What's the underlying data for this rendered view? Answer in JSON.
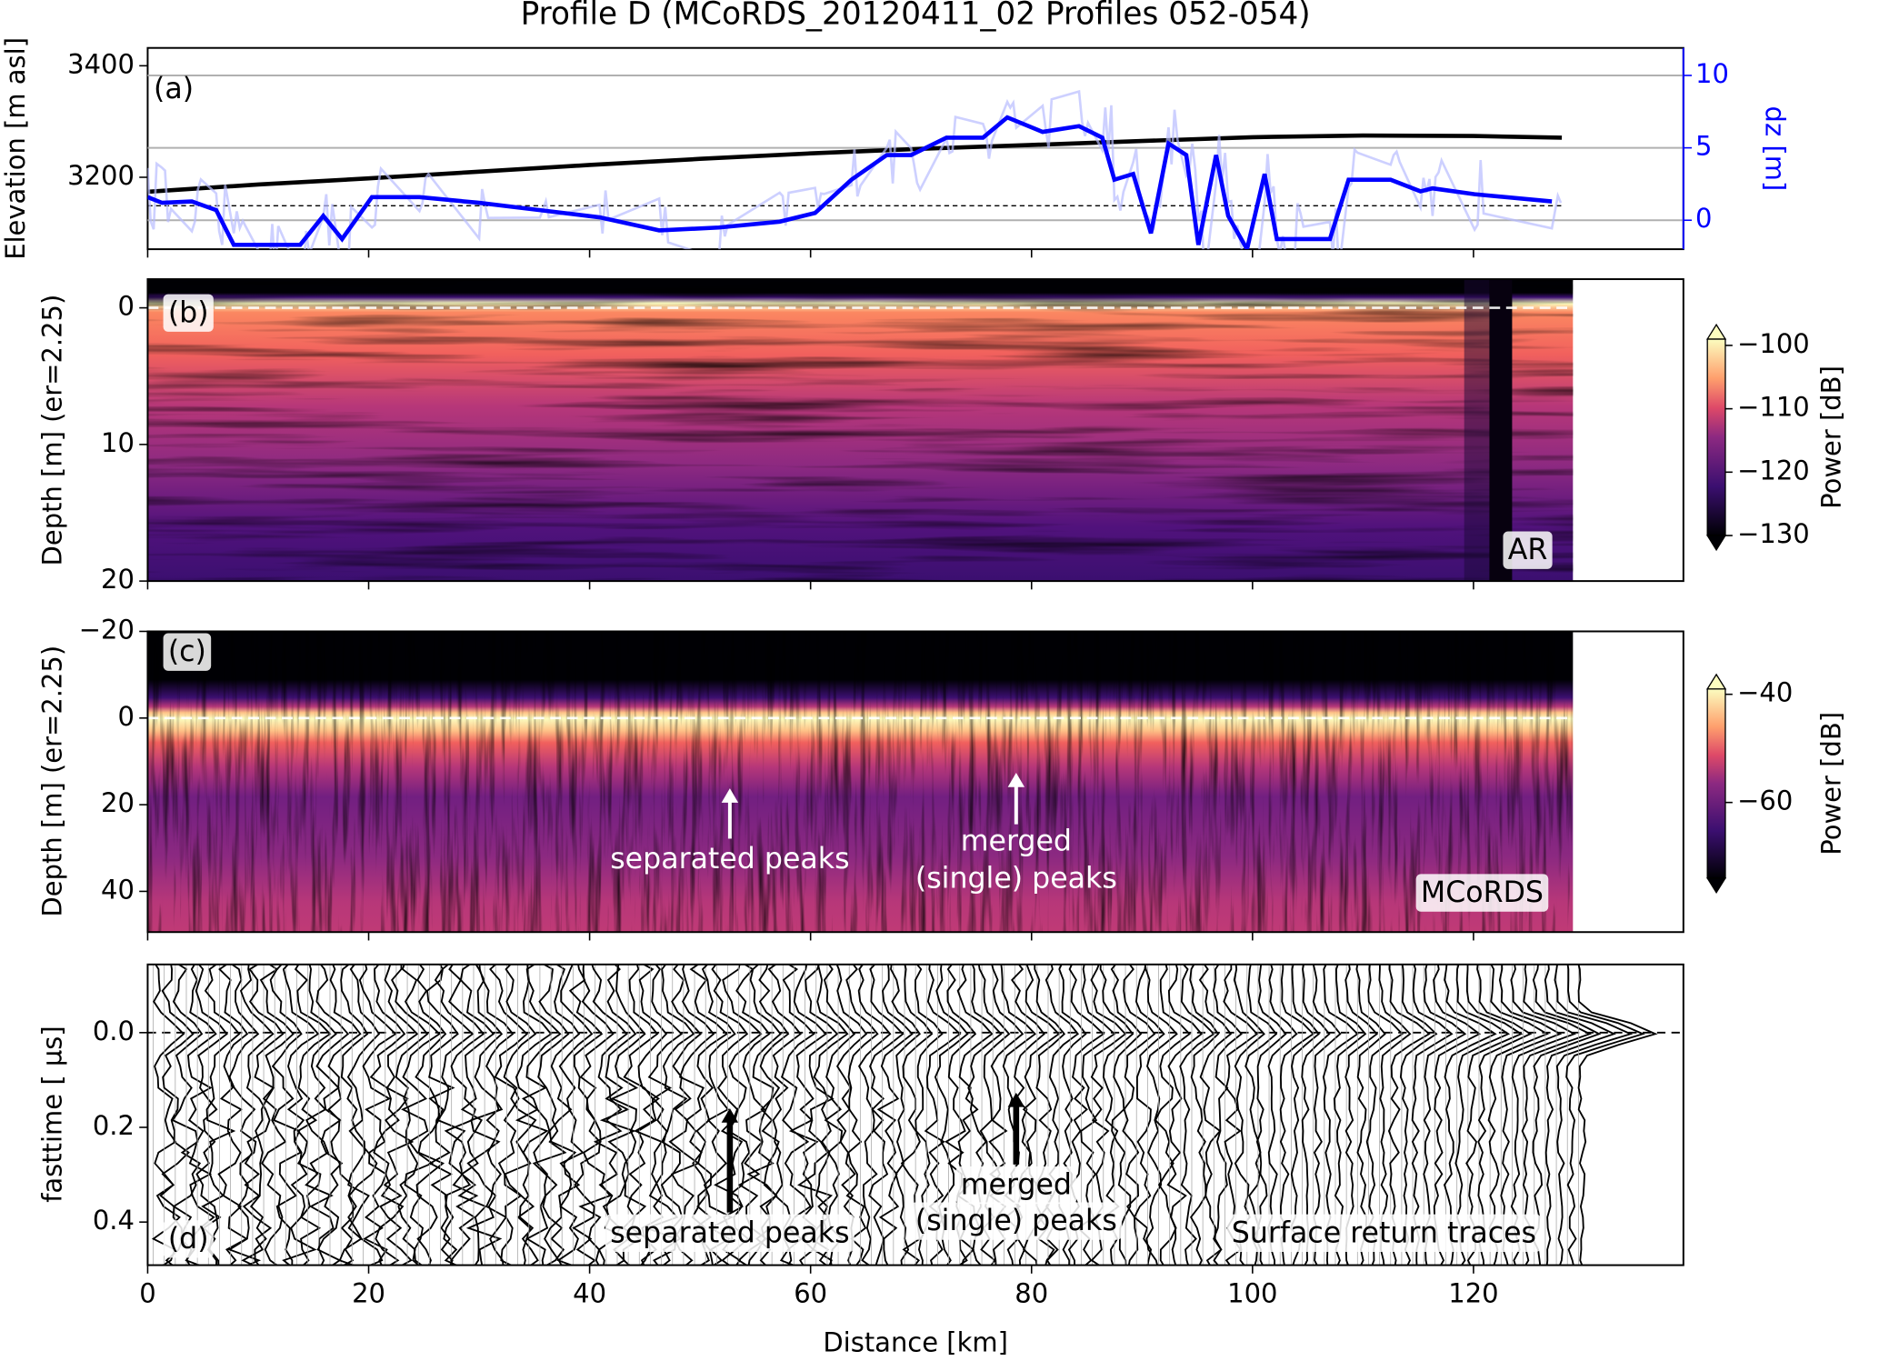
{
  "title": "Profile D (MCoRDS_20120411_02 Profiles 052-054)",
  "chart_data": [
    {
      "type": "line",
      "ylabel": "Elevation [m asl]",
      "y2label": "dz [m]",
      "y2color": "#0000ff",
      "xlim": [
        0,
        139
      ],
      "xticks": [
        0,
        20,
        40,
        60,
        80,
        100,
        120
      ],
      "ylim": [
        3071,
        3432
      ],
      "yticks": [
        3200,
        3400
      ],
      "y2lim": [
        -2,
        11.9
      ],
      "y2ticks": [
        0,
        5,
        10
      ],
      "grid": "y2",
      "hline": {
        "axis": "y2",
        "value": 1
      },
      "annotations": [
        "(a)"
      ],
      "series": [
        {
          "color": "#000000",
          "x": [
            0,
            10,
            20,
            30,
            40,
            50,
            60,
            70,
            80,
            90,
            100,
            110,
            120,
            128
          ],
          "values": [
            3174,
            3187,
            3198,
            3210,
            3222,
            3233,
            3243,
            3251,
            3258,
            3265,
            3272,
            3275,
            3274,
            3271
          ]
        },
        {
          "axis": "y2",
          "color": "#0000ff",
          "x": [
            0,
            1.3,
            4,
            6.2,
            7.8,
            11,
            13.8,
            15.9,
            17.6,
            20.3,
            24.6,
            30,
            35.5,
            40.9,
            46.3,
            51.7,
            57.2,
            60.4,
            63.7,
            66.9,
            69.1,
            72.3,
            75.6,
            77.8,
            81,
            84.3,
            86.4,
            87.5,
            89.2,
            90.8,
            92.4,
            94,
            95.1,
            96.7,
            97.8,
            99.5,
            101.1,
            102.2,
            103.8,
            107,
            108.7,
            112.5,
            115.2,
            116.3,
            120.1,
            127.1
          ],
          "values": [
            1.6,
            1.2,
            1.3,
            0.7,
            -1.7,
            -1.7,
            -1.7,
            0.3,
            -1.3,
            1.6,
            1.6,
            1.2,
            0.7,
            0.2,
            -0.7,
            -0.5,
            -0.1,
            0.5,
            2.8,
            4.5,
            4.5,
            5.7,
            5.7,
            7.1,
            6.1,
            6.5,
            5.7,
            2.8,
            3.2,
            -0.9,
            5.3,
            4.5,
            -1.7,
            4.5,
            0.3,
            -2.0,
            3.2,
            -1.3,
            -1.3,
            -1.3,
            2.8,
            2.8,
            2.0,
            2.2,
            1.8,
            1.3
          ]
        }
      ]
    },
    {
      "type": "heatmap",
      "ylabel": "Depth [m] (er=2.25)",
      "colormap": "magma",
      "xlim": [
        0,
        139
      ],
      "xticks": [
        0,
        20,
        40,
        60,
        80,
        100,
        120
      ],
      "x_extent": [
        0,
        129
      ],
      "ylim": [
        20,
        -2.1
      ],
      "yticks": [
        0,
        10,
        20
      ],
      "hline": {
        "value": 0
      },
      "annotations": [
        "(b)",
        "AR"
      ],
      "colorbar": {
        "label": "Power [dB]",
        "lim": [
          -130,
          -99
        ],
        "ticks": [
          {
            "value": -100,
            "label": "−100"
          },
          {
            "value": -110,
            "label": "−110"
          },
          {
            "value": -120,
            "label": "−120"
          },
          {
            "value": -130,
            "label": "−130"
          }
        ]
      }
    },
    {
      "type": "heatmap",
      "ylabel": "Depth [m] (er=2.25)",
      "colormap": "magma",
      "xlim": [
        0,
        139
      ],
      "xticks": [
        0,
        20,
        40,
        60,
        80,
        100,
        120
      ],
      "x_extent": [
        0,
        129
      ],
      "ylim": [
        49.4,
        -20
      ],
      "yticks": [
        {
          "value": -20,
          "label": "−20"
        },
        0,
        20,
        40
      ],
      "hline": {
        "value": 0
      },
      "annotations": [
        "(c)",
        "MCoRDS",
        "separated peaks",
        "merged",
        "(single) peaks"
      ],
      "colorbar": {
        "label": "Power [dB]",
        "lim": [
          -74,
          -39
        ],
        "ticks": [
          {
            "value": -40,
            "label": "−40"
          },
          {
            "value": -60,
            "label": "−60"
          }
        ]
      }
    },
    {
      "type": "wiggle",
      "ylabel": "fasttime [ µs]",
      "xlabel": "Distance [km]",
      "xlim": [
        0,
        139
      ],
      "xticks": [
        0,
        20,
        40,
        60,
        80,
        100,
        120
      ],
      "ylim": [
        0.491,
        -0.144
      ],
      "yticks": [
        {
          "value": 0,
          "label": "0.0"
        },
        0.2,
        0.4
      ],
      "hline": {
        "value": 0
      },
      "annotations": [
        "(d)",
        "separated peaks",
        "merged",
        "(single) peaks",
        "Surface return traces"
      ]
    }
  ]
}
